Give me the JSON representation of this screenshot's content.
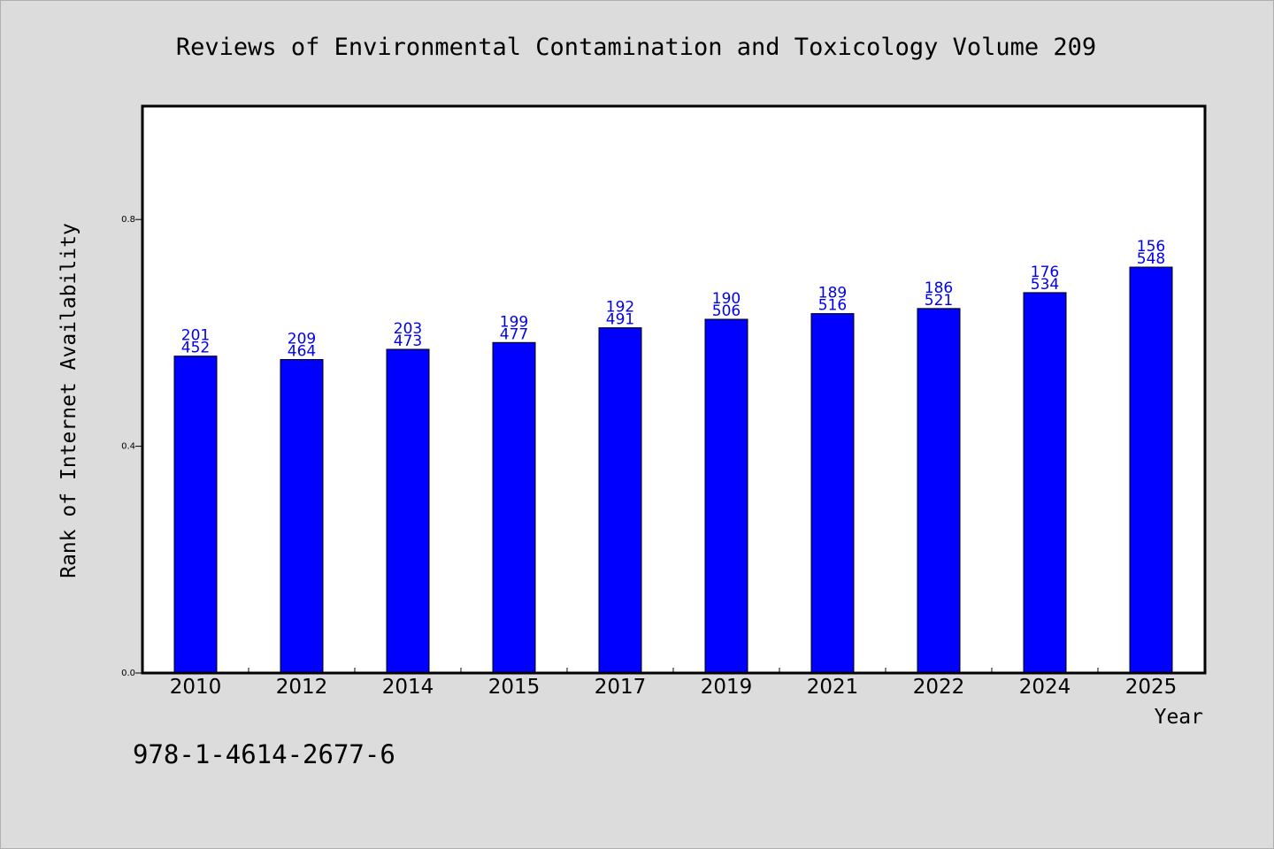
{
  "chart_data": {
    "type": "bar",
    "title": "Reviews of Environmental Contamination and Toxicology Volume 209",
    "xlabel": "Year",
    "ylabel": "Rank of Internet Availability",
    "categories": [
      "2010",
      "2012",
      "2014",
      "2015",
      "2017",
      "2019",
      "2021",
      "2022",
      "2024",
      "2025"
    ],
    "values": [
      0.559,
      0.553,
      0.571,
      0.583,
      0.609,
      0.624,
      0.634,
      0.643,
      0.671,
      0.716
    ],
    "labels_top": [
      "201",
      "209",
      "203",
      "199",
      "192",
      "190",
      "189",
      "186",
      "176",
      "156"
    ],
    "labels_bottom": [
      "452",
      "464",
      "473",
      "477",
      "491",
      "506",
      "516",
      "521",
      "534",
      "548"
    ],
    "yticks": [
      0.0,
      0.4,
      0.8
    ],
    "ytick_labels": [
      "0.0",
      "0.4",
      "0.8"
    ],
    "ylim": [
      0.0,
      1.0
    ],
    "grid": false,
    "bar_color": "#0000ff",
    "label_color": "#0000ee"
  },
  "footer": {
    "isbn": "978-1-4614-2677-6"
  }
}
